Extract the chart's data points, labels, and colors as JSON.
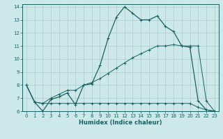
{
  "xlabel": "Humidex (Indice chaleur)",
  "bg_color": "#cce8e8",
  "grid_color": "#aacccc",
  "line_color": "#1a6060",
  "xlim": [
    -0.5,
    23.5
  ],
  "ylim": [
    6,
    14.2
  ],
  "xticks": [
    0,
    1,
    2,
    3,
    4,
    5,
    6,
    7,
    8,
    9,
    10,
    11,
    12,
    13,
    14,
    15,
    16,
    17,
    18,
    19,
    20,
    21,
    22,
    23
  ],
  "yticks": [
    6,
    7,
    8,
    9,
    10,
    11,
    12,
    13,
    14
  ],
  "line1_x": [
    0,
    1,
    2,
    3,
    4,
    5,
    6,
    7,
    8,
    9,
    10,
    11,
    12,
    13,
    14,
    15,
    16,
    17,
    18,
    19,
    20,
    21,
    22,
    23
  ],
  "line1_y": [
    8.0,
    6.7,
    6.0,
    6.9,
    7.1,
    7.4,
    6.5,
    8.0,
    8.1,
    9.5,
    11.6,
    13.2,
    14.0,
    13.5,
    13.0,
    13.0,
    13.3,
    12.5,
    12.1,
    11.0,
    10.9,
    6.8,
    6.1,
    6.0
  ],
  "line2_x": [
    0,
    1,
    2,
    3,
    4,
    5,
    6,
    7,
    8,
    9,
    10,
    11,
    12,
    13,
    14,
    15,
    16,
    17,
    18,
    19,
    20,
    21,
    22,
    23
  ],
  "line2_y": [
    8.0,
    6.7,
    6.6,
    6.6,
    6.6,
    6.6,
    6.6,
    6.6,
    6.6,
    6.6,
    6.6,
    6.6,
    6.6,
    6.6,
    6.6,
    6.6,
    6.6,
    6.6,
    6.6,
    6.6,
    6.6,
    6.3,
    6.1,
    6.0
  ],
  "line3_x": [
    0,
    1,
    2,
    3,
    4,
    5,
    6,
    7,
    8,
    9,
    10,
    11,
    12,
    13,
    14,
    15,
    16,
    17,
    18,
    19,
    20,
    21,
    22,
    23
  ],
  "line3_y": [
    8.0,
    6.7,
    6.6,
    7.0,
    7.3,
    7.6,
    7.6,
    8.0,
    8.2,
    8.5,
    8.9,
    9.3,
    9.7,
    10.1,
    10.4,
    10.7,
    11.0,
    11.0,
    11.1,
    11.0,
    11.0,
    11.0,
    6.8,
    6.0
  ]
}
